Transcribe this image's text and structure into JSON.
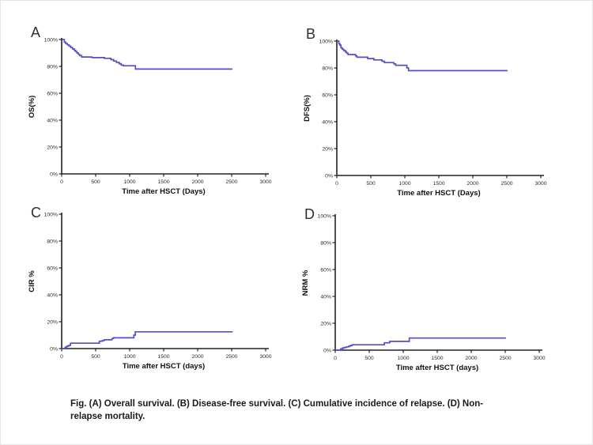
{
  "colors": {
    "curve": "#544ec9",
    "axis": "#222222",
    "tick_text": "#2b2b2b"
  },
  "caption": {
    "line1": "Fig. (A) Overall survival. (B) Disease-free survival. (C) Cumulative incidence of relapse. (D) Non-",
    "line2": "relapse mortality."
  },
  "chart_data": [
    {
      "panel_label": "A",
      "type": "line",
      "step": true,
      "ylabel": "OS(%)",
      "xlabel": "Time after HSCT (Days)",
      "xlim": [
        0,
        3000
      ],
      "ylim": [
        0,
        100
      ],
      "xticks": [
        0,
        500,
        1000,
        1500,
        2000,
        2500,
        3000
      ],
      "yticks": [
        0,
        20,
        40,
        60,
        80,
        100
      ],
      "ytick_suffix": "%",
      "grid": false,
      "legend": "none",
      "points": [
        [
          0,
          100
        ],
        [
          25,
          100
        ],
        [
          40,
          98
        ],
        [
          60,
          97
        ],
        [
          85,
          96
        ],
        [
          110,
          95
        ],
        [
          135,
          94
        ],
        [
          160,
          93
        ],
        [
          185,
          92
        ],
        [
          205,
          91
        ],
        [
          225,
          90
        ],
        [
          245,
          89
        ],
        [
          265,
          88
        ],
        [
          295,
          87
        ],
        [
          420,
          87
        ],
        [
          445,
          86.5
        ],
        [
          610,
          86.5
        ],
        [
          630,
          86
        ],
        [
          705,
          86
        ],
        [
          725,
          85
        ],
        [
          765,
          84
        ],
        [
          805,
          83
        ],
        [
          845,
          82
        ],
        [
          875,
          81
        ],
        [
          905,
          80.5
        ],
        [
          1060,
          80.5
        ],
        [
          1085,
          78
        ],
        [
          2510,
          78
        ]
      ]
    },
    {
      "panel_label": "B",
      "type": "line",
      "step": true,
      "ylabel": "DFS(%)",
      "xlabel": "Time after HSCT (Days)",
      "xlim": [
        0,
        3000
      ],
      "ylim": [
        0,
        100
      ],
      "xticks": [
        0,
        500,
        1000,
        1500,
        2000,
        2500,
        3000
      ],
      "yticks": [
        0,
        20,
        40,
        60,
        80,
        100
      ],
      "ytick_suffix": "%",
      "grid": false,
      "legend": "none",
      "points": [
        [
          0,
          100
        ],
        [
          15,
          100
        ],
        [
          30,
          98
        ],
        [
          45,
          97
        ],
        [
          60,
          95
        ],
        [
          80,
          94
        ],
        [
          100,
          93
        ],
        [
          125,
          92
        ],
        [
          145,
          91
        ],
        [
          165,
          90
        ],
        [
          255,
          90
        ],
        [
          275,
          89
        ],
        [
          295,
          88
        ],
        [
          430,
          88
        ],
        [
          455,
          87
        ],
        [
          520,
          87
        ],
        [
          545,
          86
        ],
        [
          640,
          86
        ],
        [
          665,
          85
        ],
        [
          700,
          84
        ],
        [
          815,
          84
        ],
        [
          840,
          83
        ],
        [
          865,
          82
        ],
        [
          1005,
          82
        ],
        [
          1030,
          80
        ],
        [
          1055,
          78
        ],
        [
          2510,
          78
        ]
      ]
    },
    {
      "panel_label": "C",
      "type": "line",
      "step": true,
      "ylabel": "CIR %",
      "xlabel": "Time after HSCT (days)",
      "xlim": [
        0,
        3000
      ],
      "ylim": [
        0,
        100
      ],
      "xticks": [
        0,
        500,
        1000,
        1500,
        2000,
        2500,
        3000
      ],
      "yticks": [
        0,
        20,
        40,
        60,
        80,
        100
      ],
      "ytick_suffix": "%",
      "grid": false,
      "legend": "none",
      "points": [
        [
          0,
          0
        ],
        [
          35,
          0
        ],
        [
          50,
          1
        ],
        [
          70,
          1.5
        ],
        [
          90,
          2
        ],
        [
          110,
          2.5
        ],
        [
          130,
          4
        ],
        [
          530,
          4
        ],
        [
          555,
          5.5
        ],
        [
          600,
          6
        ],
        [
          625,
          6.5
        ],
        [
          720,
          6.5
        ],
        [
          740,
          7.5
        ],
        [
          762,
          8
        ],
        [
          1040,
          8
        ],
        [
          1062,
          10
        ],
        [
          1082,
          12.5
        ],
        [
          2515,
          12.5
        ]
      ]
    },
    {
      "panel_label": "D",
      "type": "line",
      "step": true,
      "ylabel": "NRM %",
      "xlabel": "Time after HSCT (days)",
      "xlim": [
        0,
        3000
      ],
      "ylim": [
        0,
        100
      ],
      "xticks": [
        0,
        500,
        1000,
        1500,
        2000,
        2500,
        3000
      ],
      "yticks": [
        0,
        20,
        40,
        60,
        80,
        100
      ],
      "ytick_suffix": "%",
      "grid": false,
      "legend": "none",
      "points": [
        [
          0,
          0
        ],
        [
          60,
          0
        ],
        [
          80,
          1
        ],
        [
          105,
          1.5
        ],
        [
          130,
          2
        ],
        [
          165,
          2.5
        ],
        [
          200,
          3
        ],
        [
          225,
          3.5
        ],
        [
          250,
          4
        ],
        [
          700,
          4
        ],
        [
          722,
          5.5
        ],
        [
          780,
          5.5
        ],
        [
          802,
          6.5
        ],
        [
          1062,
          6.5
        ],
        [
          1090,
          9
        ],
        [
          2510,
          9
        ]
      ]
    }
  ]
}
